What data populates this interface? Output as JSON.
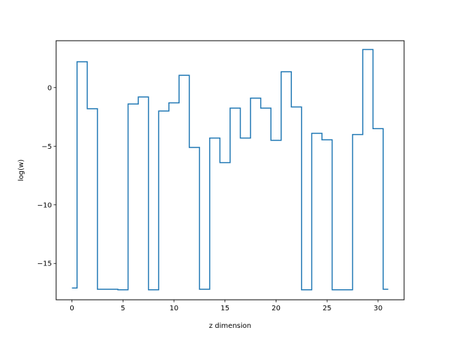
{
  "chart_data": {
    "type": "line",
    "drawstyle": "steps-mid",
    "title": "",
    "xlabel": "z dimension",
    "ylabel": "log(w)",
    "xlim": [
      -1.55,
      32.55
    ],
    "ylim": [
      -18.1,
      4.0
    ],
    "xticks": [
      0,
      5,
      10,
      15,
      20,
      25,
      30
    ],
    "yticks": [
      -15,
      -10,
      -5,
      0
    ],
    "ytick_labels": [
      "−15",
      "−10",
      "−5",
      "0"
    ],
    "grid": false,
    "color": "#1f77b4",
    "series": [
      {
        "x": [
          0,
          1,
          2,
          3,
          4,
          5,
          6,
          7,
          8,
          9,
          10,
          11,
          12,
          13,
          14,
          15,
          16,
          17,
          18,
          19,
          20,
          21,
          22,
          23,
          24,
          25,
          26,
          27,
          28,
          29,
          30,
          31
        ],
        "y": [
          -17.1,
          2.2,
          -1.8,
          -17.2,
          -17.2,
          -17.25,
          -1.4,
          -0.8,
          -17.25,
          -2.0,
          -1.3,
          1.05,
          -5.1,
          -17.2,
          -4.3,
          -6.4,
          -1.75,
          -4.3,
          -0.9,
          -1.75,
          -4.5,
          1.35,
          -1.65,
          -17.25,
          -3.9,
          -4.45,
          -17.25,
          -17.25,
          -4.0,
          3.25,
          -3.5,
          -17.2
        ]
      }
    ]
  }
}
